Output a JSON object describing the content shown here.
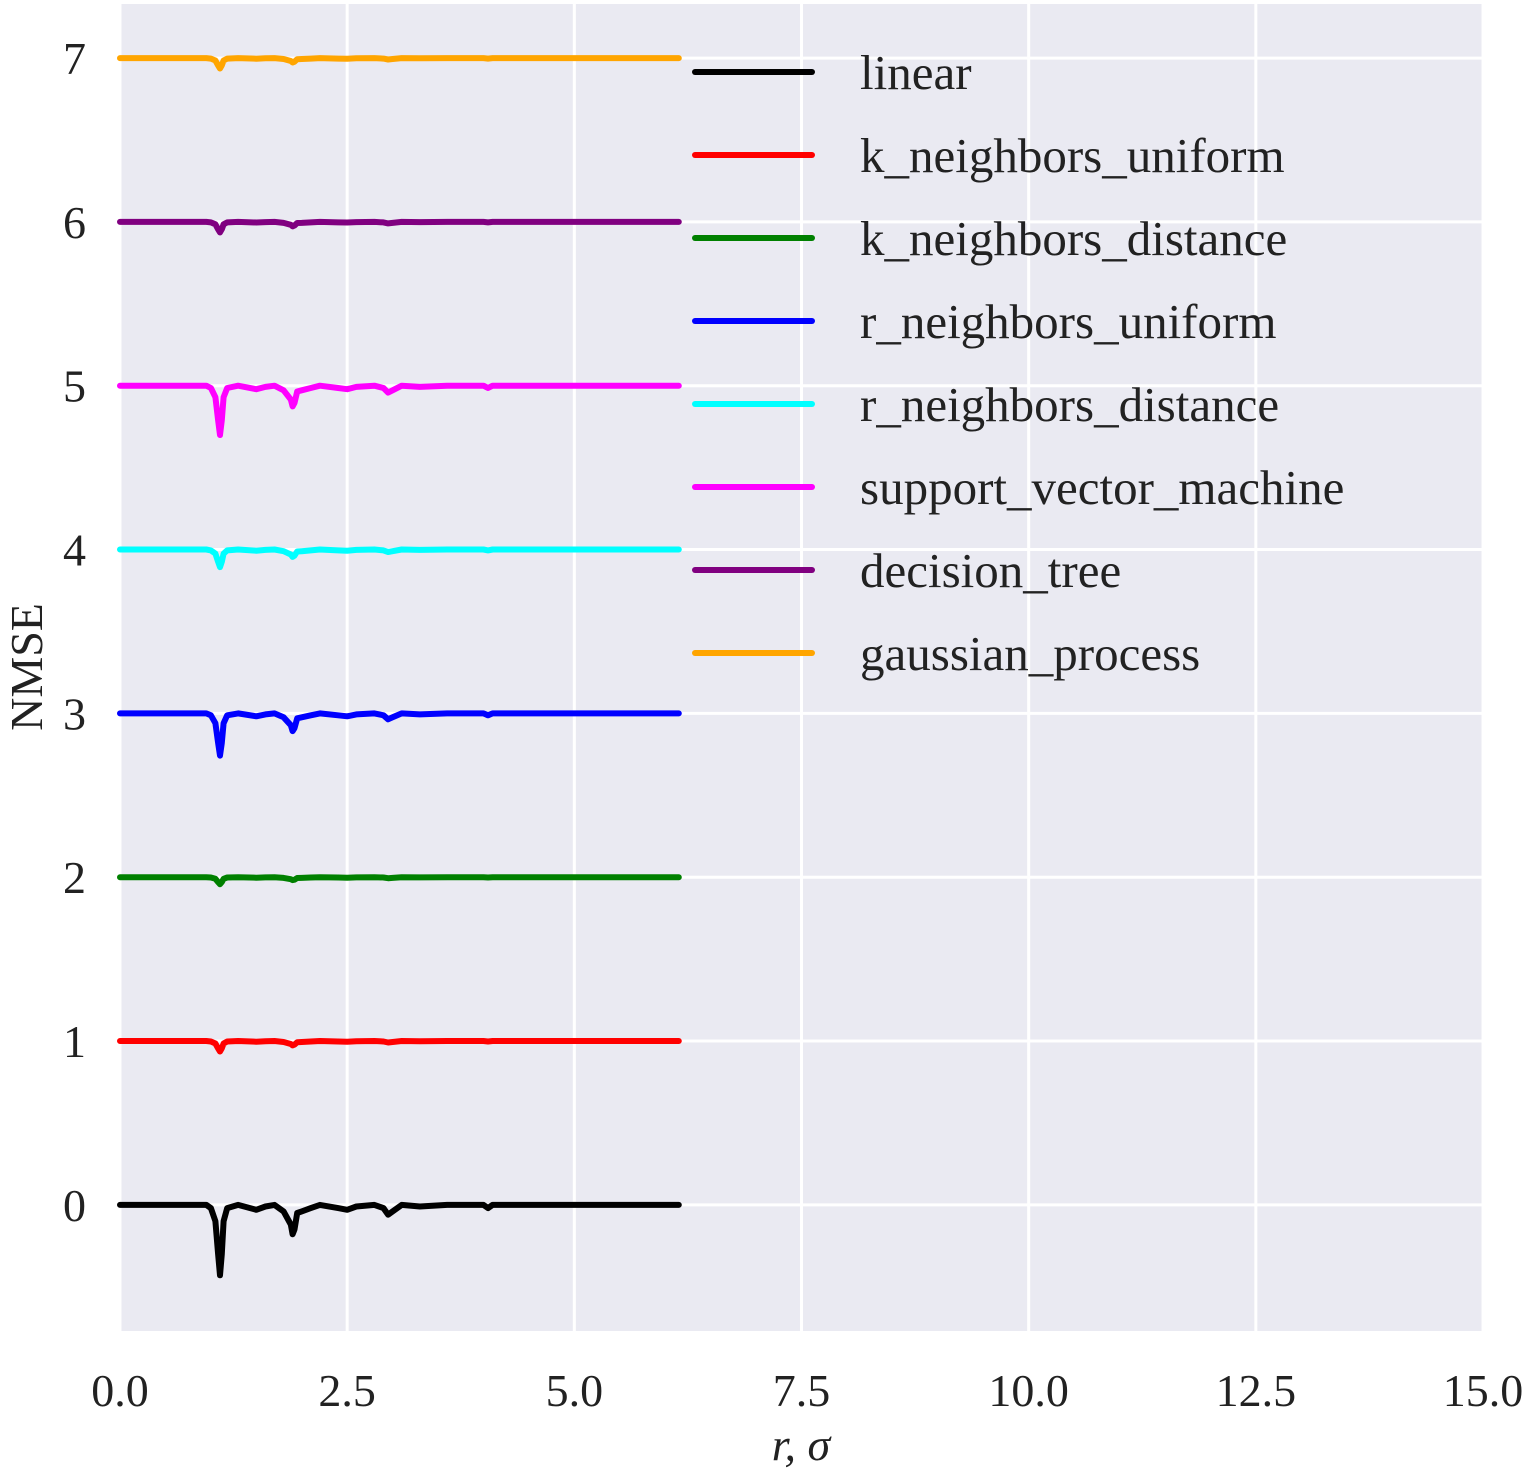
{
  "chart_data": {
    "type": "line",
    "title": "",
    "xlabel": "r, σ",
    "ylabel": "NMSE",
    "xlim": [
      0,
      15
    ],
    "ylim": [
      -0.77,
      7.33
    ],
    "xticks": [
      0,
      2.5,
      5,
      7.5,
      10,
      12.5,
      15
    ],
    "xtick_labels": [
      "0.0",
      "2.5",
      "5.0",
      "7.5",
      "10.0",
      "12.5",
      "15.0"
    ],
    "yticks": [
      0,
      1,
      2,
      3,
      4,
      5,
      6,
      7
    ],
    "ytick_labels": [
      "0",
      "1",
      "2",
      "3",
      "4",
      "5",
      "6",
      "7"
    ],
    "grid": true,
    "background_color": "#eaeaf2",
    "legend_position": "top-right",
    "x": [
      0,
      0.5,
      0.95,
      1.0,
      1.05,
      1.08,
      1.1,
      1.12,
      1.14,
      1.18,
      1.3,
      1.5,
      1.6,
      1.7,
      1.8,
      1.88,
      1.9,
      1.92,
      1.95,
      2.0,
      2.1,
      2.2,
      2.4,
      2.5,
      2.6,
      2.8,
      2.9,
      2.95,
      3.0,
      3.1,
      3.3,
      3.6,
      4.0,
      4.05,
      4.1,
      4.3,
      5.0,
      6.15
    ],
    "series": [
      {
        "name": "linear",
        "color": "#000000",
        "offset": 0,
        "amp": 1.0,
        "y": [
          0.0,
          0.0,
          0.0,
          -0.02,
          -0.1,
          -0.3,
          -0.43,
          -0.3,
          -0.1,
          -0.02,
          0.0,
          -0.03,
          -0.01,
          0.0,
          -0.04,
          -0.12,
          -0.18,
          -0.15,
          -0.05,
          -0.04,
          -0.02,
          0.0,
          -0.02,
          -0.03,
          -0.01,
          0.0,
          -0.02,
          -0.06,
          -0.04,
          0.0,
          -0.01,
          0.0,
          0.0,
          -0.02,
          0.0,
          0.0,
          0.0,
          0.0
        ]
      },
      {
        "name": "k_neighbors_uniform",
        "color": "#ff0000",
        "offset": 1,
        "amp": 0.15,
        "y": [
          1.0,
          1.0,
          1.0,
          0.997,
          0.985,
          0.955,
          0.936,
          0.955,
          0.985,
          0.997,
          1.0,
          0.996,
          0.999,
          1.0,
          0.994,
          0.982,
          0.973,
          0.978,
          0.993,
          0.994,
          0.997,
          1.0,
          0.997,
          0.996,
          0.999,
          1.0,
          0.997,
          0.991,
          0.994,
          1.0,
          0.999,
          1.0,
          1.0,
          0.997,
          1.0,
          1.0,
          1.0,
          1.0
        ]
      },
      {
        "name": "k_neighbors_distance",
        "color": "#008000",
        "offset": 2,
        "amp": 0.1,
        "y": [
          2.0,
          2.0,
          2.0,
          1.998,
          1.99,
          1.97,
          1.957,
          1.97,
          1.99,
          1.998,
          2.0,
          1.997,
          1.999,
          2.0,
          1.996,
          1.988,
          1.982,
          1.985,
          1.995,
          1.996,
          1.998,
          2.0,
          1.998,
          1.997,
          1.999,
          2.0,
          1.998,
          1.994,
          1.996,
          2.0,
          1.999,
          2.0,
          2.0,
          1.998,
          2.0,
          2.0,
          2.0,
          2.0
        ]
      },
      {
        "name": "r_neighbors_uniform",
        "color": "#0000ff",
        "offset": 3,
        "amp": 0.6,
        "y": [
          3.0,
          3.0,
          3.0,
          2.988,
          2.94,
          2.82,
          2.742,
          2.82,
          2.94,
          2.988,
          3.0,
          2.982,
          2.994,
          3.0,
          2.976,
          2.928,
          2.892,
          2.91,
          2.97,
          2.976,
          2.988,
          3.0,
          2.988,
          2.982,
          2.994,
          3.0,
          2.988,
          2.964,
          2.976,
          3.0,
          2.994,
          3.0,
          3.0,
          2.988,
          3.0,
          3.0,
          3.0,
          3.0
        ]
      },
      {
        "name": "r_neighbors_distance",
        "color": "#00ffff",
        "offset": 4,
        "amp": 0.25,
        "y": [
          4.0,
          4.0,
          4.0,
          3.995,
          3.975,
          3.925,
          3.893,
          3.925,
          3.975,
          3.995,
          4.0,
          3.993,
          3.998,
          4.0,
          3.99,
          3.97,
          3.955,
          3.963,
          3.988,
          3.99,
          3.995,
          4.0,
          3.995,
          3.993,
          3.998,
          4.0,
          3.995,
          3.985,
          3.99,
          4.0,
          3.998,
          4.0,
          4.0,
          3.995,
          4.0,
          4.0,
          4.0,
          4.0
        ]
      },
      {
        "name": "support_vector_machine",
        "color": "#ff00ff",
        "offset": 5,
        "amp": 0.7,
        "y": [
          5.0,
          5.0,
          5.0,
          4.986,
          4.93,
          4.79,
          4.699,
          4.79,
          4.93,
          4.986,
          5.0,
          4.979,
          4.993,
          5.0,
          4.972,
          4.916,
          4.874,
          4.895,
          4.965,
          4.972,
          4.986,
          5.0,
          4.986,
          4.979,
          4.993,
          5.0,
          4.986,
          4.958,
          4.972,
          5.0,
          4.993,
          5.0,
          5.0,
          4.986,
          5.0,
          5.0,
          5.0,
          5.0
        ]
      },
      {
        "name": "decision_tree",
        "color": "#800080",
        "offset": 6,
        "amp": 0.15,
        "y": [
          6.0,
          6.0,
          6.0,
          5.997,
          5.985,
          5.955,
          5.936,
          5.955,
          5.985,
          5.997,
          6.0,
          5.996,
          5.999,
          6.0,
          5.994,
          5.982,
          5.973,
          5.978,
          5.993,
          5.994,
          5.997,
          6.0,
          5.997,
          5.996,
          5.999,
          6.0,
          5.997,
          5.991,
          5.994,
          6.0,
          5.999,
          6.0,
          6.0,
          5.997,
          6.0,
          6.0,
          6.0,
          6.0
        ]
      },
      {
        "name": "gaussian_process",
        "color": "#ffa500",
        "offset": 7,
        "amp": 0.15,
        "y": [
          7.0,
          7.0,
          7.0,
          6.997,
          6.985,
          6.955,
          6.936,
          6.955,
          6.985,
          6.997,
          7.0,
          6.996,
          6.999,
          7.0,
          6.994,
          6.982,
          6.973,
          6.978,
          6.993,
          6.994,
          6.997,
          7.0,
          6.997,
          6.996,
          6.999,
          7.0,
          6.997,
          6.991,
          6.994,
          7.0,
          6.999,
          7.0,
          7.0,
          6.997,
          7.0,
          7.0,
          7.0,
          7.0
        ]
      }
    ]
  }
}
